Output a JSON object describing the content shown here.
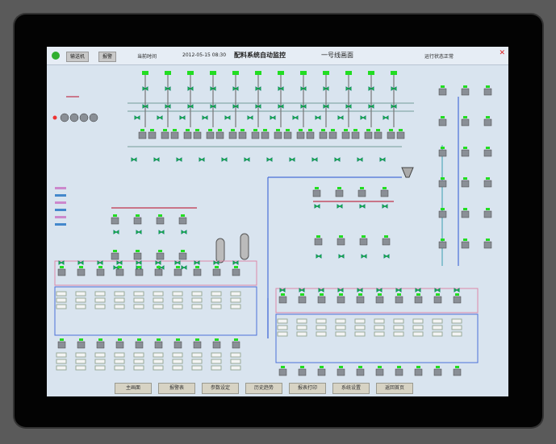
{
  "topbar": {
    "btn1": "输送机",
    "btn2": "报警",
    "label1": "当前时间",
    "label2": "2012-05-15 08:30",
    "title": "配料系统自动监控",
    "subtitle": "一号线画面",
    "status": "运行状态正常"
  },
  "bottombar": {
    "buttons": [
      "主画面",
      "报警表",
      "参数设定",
      "历史趋势",
      "报表打印",
      "系统设置",
      "返回首页"
    ]
  },
  "colors": {
    "screen": "#d9e4ef",
    "pipe_blue": "#4a6fd8",
    "pipe_red": "#c0304a",
    "active": "#22dd22",
    "equipment": "#8a8f96"
  }
}
